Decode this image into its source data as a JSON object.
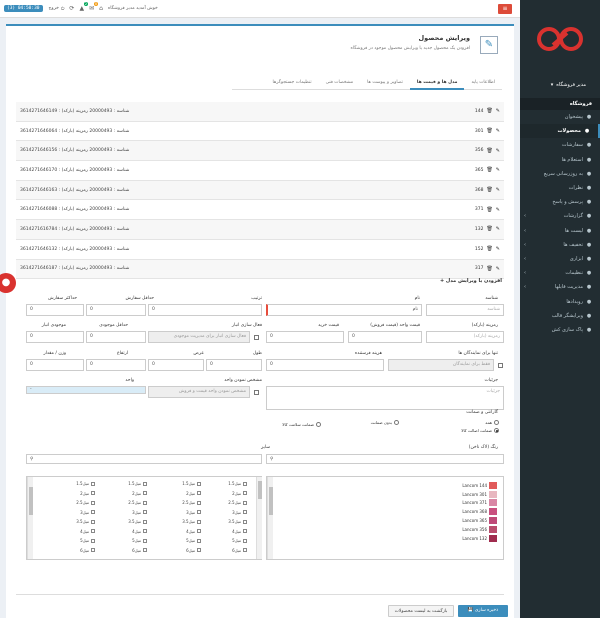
{
  "topbar": {
    "clock": "(3) 04:50:30",
    "logout_label": "خروج",
    "welcome": "خوش آمدید مدیر فروشگاه",
    "badge_a": "2",
    "badge_b": "0",
    "colors": {
      "badge_a": "#00a65a",
      "badge_b": "#f39c12"
    }
  },
  "sidebar": {
    "user_label": "مدیر فروشگاه",
    "header": "فروشگاه",
    "items": [
      {
        "label": "پیشخوان",
        "icon": "dashboard-icon"
      },
      {
        "label": "محصولات",
        "icon": "product-icon",
        "active": true
      },
      {
        "label": "سفارشات",
        "icon": "cart-icon"
      },
      {
        "label": "استعلام ها",
        "icon": "inquiry-icon"
      },
      {
        "label": "به روزرسانی سریع",
        "icon": "refresh-icon"
      },
      {
        "label": "نظرات",
        "icon": "comment-icon"
      },
      {
        "label": "پرسش و پاسخ",
        "icon": "question-icon"
      },
      {
        "label": "گزارشات",
        "icon": "report-icon",
        "arrow": true
      },
      {
        "label": "لیست ها",
        "icon": "list-icon",
        "arrow": true
      },
      {
        "label": "تخفیف ها",
        "icon": "discount-icon",
        "arrow": true
      },
      {
        "label": "ابزاری",
        "icon": "tools-icon",
        "arrow": true
      },
      {
        "label": "تنظیمات",
        "icon": "settings-icon",
        "arrow": true
      },
      {
        "label": "مدیریت فایلها",
        "icon": "folder-icon",
        "arrow": true
      },
      {
        "label": "رویدادها",
        "icon": "event-icon"
      },
      {
        "label": "ویرایشگر قالب",
        "icon": "template-icon"
      },
      {
        "label": "پاک سازی کش",
        "icon": "clear-cache-icon"
      }
    ]
  },
  "page": {
    "title": "ویرایش محصول",
    "subtitle": "افزودن یک محصول جدید یا ویرایش محصول موجود در فروشگاه"
  },
  "tabs": [
    {
      "label": "اطلاعات پایه"
    },
    {
      "label": "مدل ها و قیمت ها",
      "active": true
    },
    {
      "label": "تصاویر و پیوست ها"
    },
    {
      "label": "مشخصات فنی"
    },
    {
      "label": "تنظیمات جستجوگرها"
    }
  ],
  "models": [
    {
      "num": "144",
      "info": "شناسه : 20000493  رمزینه (بارکد) : 3614271646149"
    },
    {
      "num": "301",
      "info": "شناسه : 20000493  رمزینه (بارکد) : 3614271646064"
    },
    {
      "num": "356",
      "info": "شناسه : 20000493  رمزینه (بارکد) : 3614271646156"
    },
    {
      "num": "365",
      "info": "شناسه : 20000493  رمزینه (بارکد) : 3614271646170"
    },
    {
      "num": "368",
      "info": "شناسه : 20000493  رمزینه (بارکد) : 3614271646163"
    },
    {
      "num": "371",
      "info": "شناسه : 20000493  رمزینه (بارکد) : 3614271646088"
    },
    {
      "num": "132",
      "info": "شناسه : 20000493  رمزینه (بارکد) : 3614271616784"
    },
    {
      "num": "152",
      "info": "شناسه : 20000493  رمزینه (بارکد) : 3614271646132"
    },
    {
      "num": "317",
      "info": "شناسه : 20000493  رمزینه (بارکد) : 3614271646187"
    }
  ],
  "form": {
    "add_header": "+ افزودن یا ویرایش مدل",
    "labels": {
      "id": "شناسه",
      "name": "نام",
      "order": "ترتیب",
      "min_order": "حداقل سفارش",
      "max_order": "حداکثر سفارش",
      "barcode": "رمزینه (بارکد)",
      "unit_price": "قیمت واحد (قیمت فروش)",
      "purchase_price": "قیمت خرید",
      "stock_active": "فعال سازی انبار",
      "min_stock": "حداقل موجودی",
      "stock": "موجودی انبار",
      "rep_only": "تنها برای نمایندگان ها",
      "ship_cost": "هزینه فرستنده",
      "length": "طول",
      "width": "عرض",
      "height": "ارتفاع",
      "weight": "وزن / مقدار",
      "show_unit": "مشخص نمودن واحد",
      "unit": "واحد",
      "details": "جزئیات",
      "warranty": "گارانتی و ضمانت",
      "color": "رنگ (لاک ناخن)",
      "size": "سایز"
    },
    "values": {
      "id": "شناسه",
      "name": "نام",
      "order": "0",
      "min_order": "0",
      "max_order": "0",
      "barcode": "رمزینه (بارکد)",
      "unit_price": "0",
      "purchase_price": "0",
      "stock_active": "فعال سازی انبار برای مدیریت موجودی",
      "min_stock": "0",
      "stock": "0",
      "rep_only": "فقط برای نمایندگان",
      "ship_cost": "0",
      "length": "0",
      "width": "0",
      "height": "0",
      "weight": "0",
      "show_unit": "مشخص نمودن واحد قیمت و فروش",
      "unit": "-",
      "details": "جزئیات"
    },
    "warranty_options": [
      "همه",
      "بدون ضمانت",
      "ضمانت سلامت کالا",
      "ضمانت اصالت کالا"
    ],
    "warranty_selected": 3
  },
  "colors": [
    {
      "name": "Lancom 144",
      "hex": "#e15a5a"
    },
    {
      "name": "Lancom 301",
      "hex": "#e8b7c0"
    },
    {
      "name": "Lancom 371",
      "hex": "#d987a5"
    },
    {
      "name": "Lancom 368",
      "hex": "#c9507f"
    },
    {
      "name": "Lancom 365",
      "hex": "#bf4a78"
    },
    {
      "name": "Lancom 356",
      "hex": "#b94d6d"
    },
    {
      "name": "Lancom 132",
      "hex": "#a02c4e"
    }
  ],
  "sizes": [
    [
      "1.5میل",
      "1.5میل",
      "1.5میل",
      "1.5میل"
    ],
    [
      "2میل",
      "2میل",
      "2میل",
      "2میل"
    ],
    [
      "2.5میل",
      "2.5میل",
      "2.5میل",
      "2.5میل"
    ],
    [
      "3میل",
      "3میل",
      "3میل",
      "3میل"
    ],
    [
      "3.5میل",
      "3.5میل",
      "3.5میل",
      "3.5میل"
    ],
    [
      "4میل",
      "4میل",
      "4میل",
      "4میل"
    ],
    [
      "5میل",
      "5میل",
      "5میل",
      "5میل"
    ],
    [
      "6میل",
      "6میل",
      "6میل",
      "6میل"
    ]
  ],
  "buttons": {
    "save": "ذخیره سازی",
    "back": "بازگشت به لیست محصولات"
  }
}
